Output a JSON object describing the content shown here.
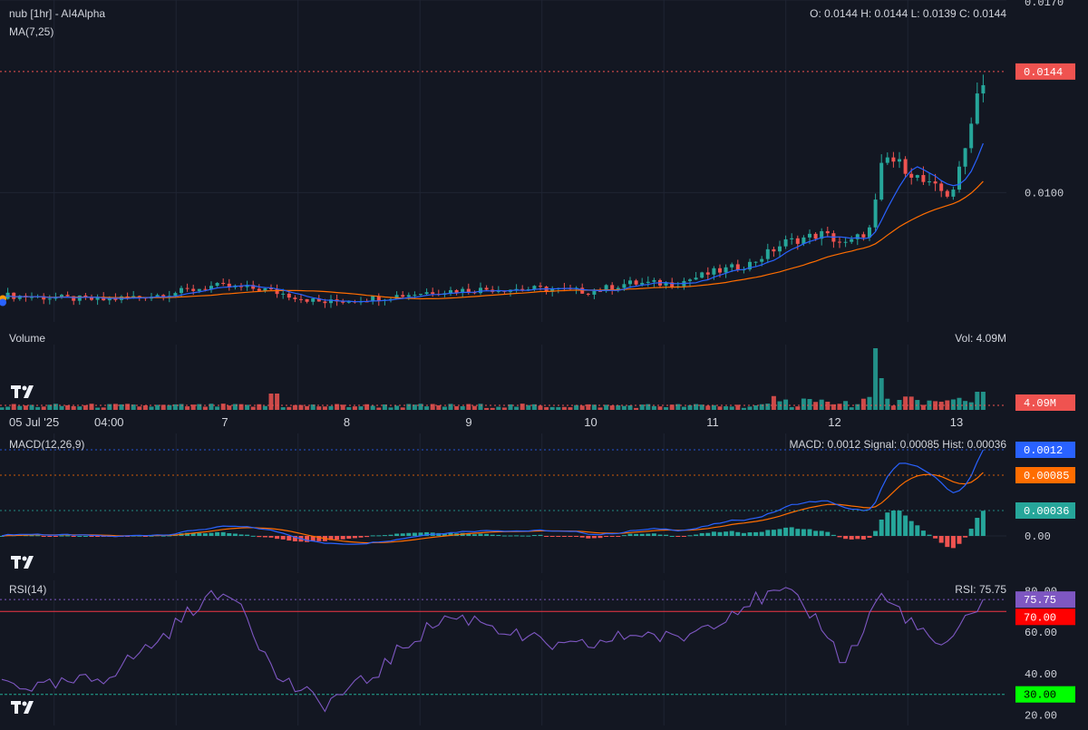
{
  "header": {
    "symbol_title": "nub [1hr] - AI4Alpha",
    "ma_label": "MA(7,25)",
    "ohlc_text": "O: 0.0144 H: 0.0144 L: 0.0139 C: 0.0144"
  },
  "volume_panel": {
    "title": "Volume",
    "value_text": "Vol: 4.09M"
  },
  "macd_panel": {
    "title": "MACD(12,26,9)",
    "value_text": "MACD: 0.0012 Signal: 0.00085 Hist: 0.00036"
  },
  "rsi_panel": {
    "title": "RSI(14)",
    "value_text": "RSI: 75.75"
  },
  "colors": {
    "background": "#131722",
    "up": "#26a69a",
    "down": "#ef5350",
    "ma_fast": "#2962ff",
    "ma_slow": "#ff6d00",
    "macd_line": "#2962ff",
    "signal_line": "#ff6d00",
    "rsi_line": "#7e57c2",
    "rsi_overbought": "#f23645",
    "rsi_oversold": "#22ab94",
    "grid": "#1f2433"
  },
  "icons": {
    "watermark": "tradingview-logo-icon",
    "last_point": "orange-dot-icon"
  },
  "chart_data": [
    {
      "type": "candlestick",
      "title": "nub [1hr] - AI4Alpha",
      "x_tick_labels": [
        "05 Jul '25",
        "04:00",
        "7",
        "8",
        "9",
        "10",
        "11",
        "12",
        "13"
      ],
      "y_tick_labels": [
        "0.0170",
        "0.0100"
      ],
      "ylim": [
        0.0053,
        0.017
      ],
      "last_price": 0.0144,
      "last_price_label": "0.0144",
      "ohlc_last": {
        "open": 0.0144,
        "high": 0.0144,
        "low": 0.0139,
        "close": 0.0144
      },
      "series": [
        {
          "name": "MA(7)",
          "note": "fast moving average"
        },
        {
          "name": "MA(25)",
          "note": "slow moving average"
        }
      ],
      "close_anchors": [
        {
          "day": 5.0,
          "close": 0.0063
        },
        {
          "day": 5.5,
          "close": 0.0062
        },
        {
          "day": 6.0,
          "close": 0.0061
        },
        {
          "day": 6.5,
          "close": 0.0063
        },
        {
          "day": 6.9,
          "close": 0.0066
        },
        {
          "day": 7.3,
          "close": 0.0065
        },
        {
          "day": 7.8,
          "close": 0.006
        },
        {
          "day": 8.3,
          "close": 0.0062
        },
        {
          "day": 8.7,
          "close": 0.0064
        },
        {
          "day": 9.2,
          "close": 0.0065
        },
        {
          "day": 9.6,
          "close": 0.0065
        },
        {
          "day": 10.0,
          "close": 0.0064
        },
        {
          "day": 10.3,
          "close": 0.0067
        },
        {
          "day": 10.7,
          "close": 0.0067
        },
        {
          "day": 11.0,
          "close": 0.0071
        },
        {
          "day": 11.3,
          "close": 0.0074
        },
        {
          "day": 11.6,
          "close": 0.0082
        },
        {
          "day": 11.9,
          "close": 0.0085
        },
        {
          "day": 12.1,
          "close": 0.0081
        },
        {
          "day": 12.3,
          "close": 0.0087
        },
        {
          "day": 12.4,
          "close": 0.0113
        },
        {
          "day": 12.55,
          "close": 0.011
        },
        {
          "day": 12.75,
          "close": 0.0103
        },
        {
          "day": 12.95,
          "close": 0.0099
        },
        {
          "day": 13.05,
          "close": 0.0111
        },
        {
          "day": 13.15,
          "close": 0.0134
        },
        {
          "day": 13.25,
          "close": 0.0144
        }
      ]
    },
    {
      "type": "bar",
      "title": "Volume",
      "last_value_label": "4.09M",
      "spike_days": [
        7.4,
        12.4
      ],
      "note": "small bars throughout; tall red spike near day 7.4, tallest spike near day 12.4"
    },
    {
      "type": "line",
      "title": "MACD(12,26,9)",
      "y_tick_labels": [
        "0.00"
      ],
      "last_values": {
        "MACD": 0.0012,
        "Signal": 0.00085,
        "Hist": 0.00036
      },
      "tag_labels": [
        "0.0012",
        "0.00085",
        "0.00036"
      ],
      "series": [
        {
          "name": "MACD"
        },
        {
          "name": "Signal"
        },
        {
          "name": "Hist"
        }
      ]
    },
    {
      "type": "line",
      "title": "RSI(14)",
      "y_tick_labels": [
        "80.00",
        "60.00",
        "40.00",
        "20.00"
      ],
      "ylim": [
        15,
        85
      ],
      "levels": {
        "overbought": 70,
        "oversold": 30
      },
      "level_labels": [
        "70.00",
        "30.00"
      ],
      "last_value": 75.75,
      "last_value_label": "75.75",
      "anchors": [
        {
          "day": 5.0,
          "rsi": 38
        },
        {
          "day": 5.5,
          "rsi": 33
        },
        {
          "day": 6.0,
          "rsi": 38
        },
        {
          "day": 6.5,
          "rsi": 58
        },
        {
          "day": 6.8,
          "rsi": 75
        },
        {
          "day": 7.1,
          "rsi": 79
        },
        {
          "day": 7.4,
          "rsi": 40
        },
        {
          "day": 7.8,
          "rsi": 25
        },
        {
          "day": 8.2,
          "rsi": 38
        },
        {
          "day": 8.5,
          "rsi": 55
        },
        {
          "day": 8.8,
          "rsi": 67
        },
        {
          "day": 9.1,
          "rsi": 66
        },
        {
          "day": 9.4,
          "rsi": 58
        },
        {
          "day": 9.8,
          "rsi": 52
        },
        {
          "day": 10.1,
          "rsi": 55
        },
        {
          "day": 10.4,
          "rsi": 60
        },
        {
          "day": 10.7,
          "rsi": 56
        },
        {
          "day": 11.0,
          "rsi": 65
        },
        {
          "day": 11.3,
          "rsi": 75
        },
        {
          "day": 11.6,
          "rsi": 79
        },
        {
          "day": 11.9,
          "rsi": 64
        },
        {
          "day": 12.05,
          "rsi": 46
        },
        {
          "day": 12.2,
          "rsi": 55
        },
        {
          "day": 12.35,
          "rsi": 78
        },
        {
          "day": 12.55,
          "rsi": 70
        },
        {
          "day": 12.75,
          "rsi": 57
        },
        {
          "day": 12.95,
          "rsi": 52
        },
        {
          "day": 13.1,
          "rsi": 70
        },
        {
          "day": 13.25,
          "rsi": 75.75
        }
      ]
    }
  ]
}
